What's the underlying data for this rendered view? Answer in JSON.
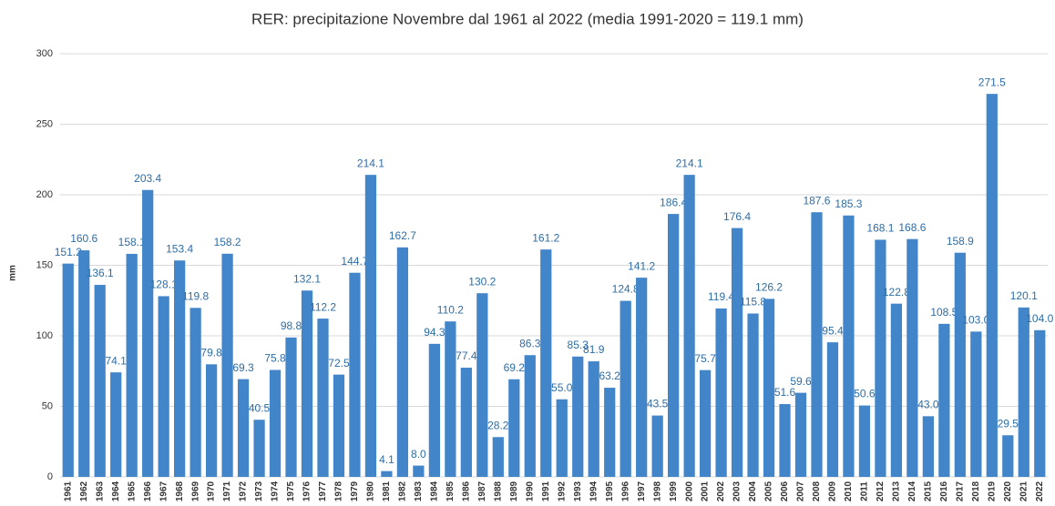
{
  "chart_data": {
    "type": "bar",
    "title": "RER: precipitazione Novembre dal 1961 al 2022 (media 1991-2020 = 119.1 mm)",
    "y_label": "mm",
    "categories": [
      "1961",
      "1962",
      "1963",
      "1964",
      "1965",
      "1966",
      "1967",
      "1968",
      "1969",
      "1970",
      "1971",
      "1972",
      "1973",
      "1974",
      "1975",
      "1976",
      "1977",
      "1978",
      "1979",
      "1980",
      "1981",
      "1982",
      "1983",
      "1984",
      "1985",
      "1986",
      "1987",
      "1988",
      "1989",
      "1990",
      "1991",
      "1992",
      "1993",
      "1994",
      "1995",
      "1996",
      "1997",
      "1998",
      "1999",
      "2000",
      "2001",
      "2002",
      "2003",
      "2004",
      "2005",
      "2006",
      "2007",
      "2008",
      "2009",
      "2010",
      "2011",
      "2012",
      "2013",
      "2014",
      "2015",
      "2016",
      "2017",
      "2018",
      "2019",
      "2020",
      "2021",
      "2022"
    ],
    "values": [
      151.2,
      160.6,
      136.1,
      74.1,
      158.1,
      203.4,
      128.1,
      153.4,
      119.8,
      79.8,
      158.2,
      69.3,
      40.5,
      75.8,
      98.8,
      132.1,
      112.2,
      72.5,
      144.7,
      214.1,
      4.1,
      162.7,
      8.0,
      94.3,
      110.2,
      77.4,
      130.2,
      28.2,
      69.2,
      86.3,
      161.2,
      55.0,
      85.3,
      81.9,
      63.2,
      124.8,
      141.2,
      43.5,
      186.4,
      214.1,
      75.7,
      119.4,
      176.4,
      115.8,
      126.2,
      51.6,
      59.6,
      187.6,
      95.4,
      185.3,
      50.6,
      168.1,
      122.8,
      168.6,
      43.0,
      108.5,
      158.9,
      103.0,
      271.5,
      29.5,
      120.1,
      104.0
    ],
    "value_labels": [
      "151.2",
      "160.6",
      "136.1",
      "74.1",
      "158.1",
      "203.4",
      "128.1",
      "153.4",
      "119.8",
      "79.8",
      "158.2",
      "69.3",
      "40.5",
      "75.8",
      "98.8",
      "132.1",
      "112.2",
      "72.5",
      "144.7",
      "214.1",
      "4.1",
      "162.7",
      "8.0",
      "94.3",
      "110.2",
      "77.4",
      "130.2",
      "28.2",
      "69.2",
      "86.3",
      "161.2",
      "55.0",
      "85.3",
      "81.9",
      "63.2",
      "124.8",
      "141.2",
      "43.5",
      "186.4",
      "214.1",
      "75.7",
      "119.4",
      "176.4",
      "115.8",
      "126.2",
      "51.6",
      "59.6",
      "187.6",
      "95.4",
      "185.3",
      "50.6",
      "168.1",
      "122.8",
      "168.6",
      "43.0",
      "108.5",
      "158.9",
      "103.0",
      "271.5",
      "29.5",
      "120.1",
      "104.0"
    ],
    "color": "#4285c8",
    "label_color": "#2e6da4",
    "ylim": [
      0,
      300
    ],
    "yticks": [
      0,
      50,
      100,
      150,
      200,
      250,
      300
    ],
    "grid": true
  }
}
